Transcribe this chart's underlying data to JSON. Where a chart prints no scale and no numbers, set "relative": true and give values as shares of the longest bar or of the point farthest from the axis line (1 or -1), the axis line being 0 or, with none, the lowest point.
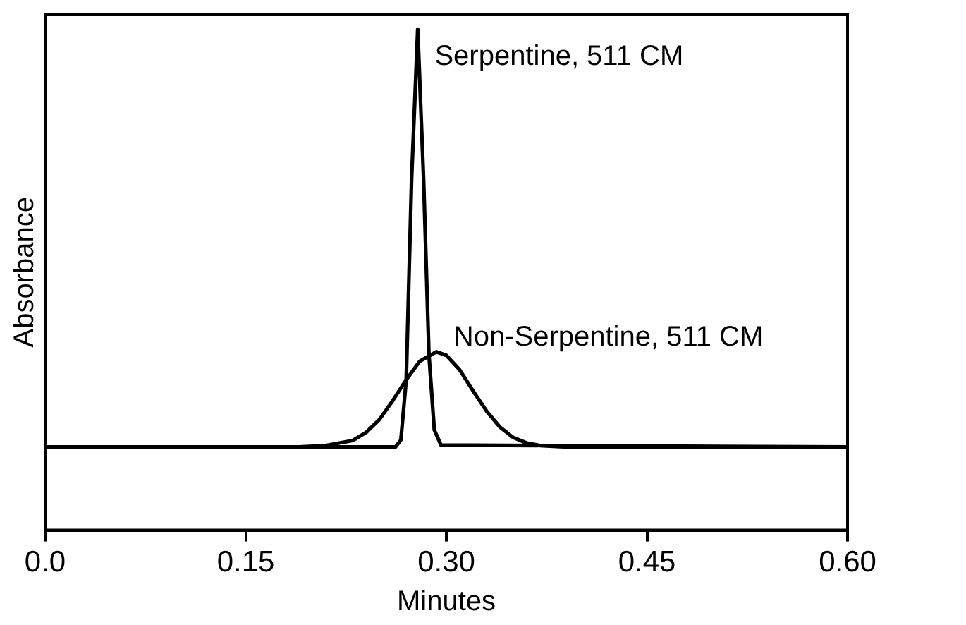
{
  "chart_data": {
    "type": "line",
    "relative": true,
    "xlabel": "Minutes",
    "ylabel": "Absorbance",
    "xlim": [
      0,
      0.6
    ],
    "xticks": [
      {
        "value": 0,
        "label": "0.0"
      },
      0.15,
      {
        "value": 0.3,
        "label": "0.30"
      },
      0.45,
      {
        "value": 0.6,
        "label": "0.60"
      }
    ],
    "series": [
      {
        "color": "#000000",
        "x": [
          0,
          0.262,
          0.266,
          0.27,
          0.274,
          0.2786,
          0.283,
          0.287,
          0.291,
          0.296,
          0.6
        ],
        "values": [
          0.166,
          0.166,
          0.18,
          0.3,
          0.7,
          1,
          0.7,
          0.35,
          0.2,
          0.17,
          0.166
        ]
      },
      {
        "color": "#000000",
        "x": [
          0,
          0.19,
          0.21,
          0.22,
          0.23,
          0.24,
          0.25,
          0.26,
          0.27,
          0.28,
          0.2925,
          0.3,
          0.31,
          0.32,
          0.33,
          0.34,
          0.35,
          0.36,
          0.37,
          0.39,
          0.6
        ],
        "values": [
          0.166,
          0.166,
          0.169,
          0.174,
          0.179,
          0.195,
          0.221,
          0.259,
          0.3,
          0.337,
          0.356,
          0.349,
          0.32,
          0.278,
          0.238,
          0.206,
          0.185,
          0.174,
          0.169,
          0.166,
          0.166
        ]
      }
    ],
    "annotations": [
      {
        "text": "Serpentine, 511 CM",
        "x": 0.2786,
        "y": 1
      },
      {
        "text": "Non-Serpentine, 511 CM",
        "x": 0.2925,
        "y": 0.356
      }
    ],
    "grid": false,
    "legend": false,
    "marker": "none",
    "line_style": "solid"
  }
}
